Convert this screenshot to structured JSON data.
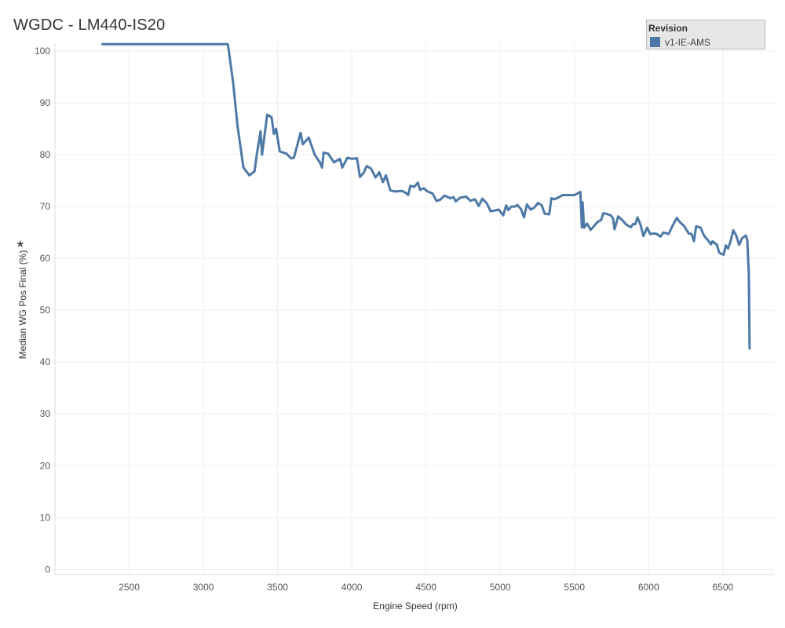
{
  "chart_data": {
    "type": "line",
    "title": "WGDC - LM440-IS20",
    "xlabel": "Engine Speed (rpm)",
    "ylabel": "Median WG Pos Final (%)",
    "xlim": [
      2000,
      6850
    ],
    "ylim": [
      -1,
      101.5
    ],
    "x_ticks": [
      2500,
      3000,
      3500,
      4000,
      4500,
      5000,
      5500,
      6000,
      6500
    ],
    "y_ticks": [
      0,
      10,
      20,
      30,
      40,
      50,
      60,
      70,
      80,
      90,
      100
    ],
    "grid": true,
    "legend": {
      "title": "Revision",
      "position": "top-right"
    },
    "series": [
      {
        "name": "v1-IE-AMS",
        "color": "#4e79a7",
        "points": [
          [
            2320,
            101.3
          ],
          [
            3165,
            101.3
          ],
          [
            3200,
            94.0
          ],
          [
            3230,
            85.5
          ],
          [
            3270,
            77.5
          ],
          [
            3310,
            76.0
          ],
          [
            3345,
            76.8
          ],
          [
            3360,
            80.0
          ],
          [
            3385,
            84.5
          ],
          [
            3395,
            80.0
          ],
          [
            3430,
            87.7
          ],
          [
            3460,
            87.2
          ],
          [
            3475,
            84.0
          ],
          [
            3490,
            85.0
          ],
          [
            3515,
            80.6
          ],
          [
            3560,
            80.2
          ],
          [
            3590,
            79.3
          ],
          [
            3610,
            79.4
          ],
          [
            3655,
            84.2
          ],
          [
            3670,
            82.0
          ],
          [
            3710,
            83.3
          ],
          [
            3750,
            80.0
          ],
          [
            3785,
            78.5
          ],
          [
            3800,
            77.5
          ],
          [
            3810,
            80.4
          ],
          [
            3840,
            80.2
          ],
          [
            3880,
            78.5
          ],
          [
            3920,
            79.2
          ],
          [
            3935,
            77.5
          ],
          [
            3970,
            79.4
          ],
          [
            4000,
            79.2
          ],
          [
            4035,
            79.3
          ],
          [
            4055,
            75.7
          ],
          [
            4080,
            76.5
          ],
          [
            4100,
            77.8
          ],
          [
            4130,
            77.3
          ],
          [
            4160,
            75.6
          ],
          [
            4185,
            76.6
          ],
          [
            4210,
            74.7
          ],
          [
            4230,
            76.0
          ],
          [
            4260,
            73.1
          ],
          [
            4290,
            72.9
          ],
          [
            4340,
            73.0
          ],
          [
            4370,
            72.5
          ],
          [
            4380,
            72.2
          ],
          [
            4395,
            74.0
          ],
          [
            4420,
            73.8
          ],
          [
            4445,
            74.6
          ],
          [
            4460,
            73.2
          ],
          [
            4485,
            73.5
          ],
          [
            4510,
            72.9
          ],
          [
            4545,
            72.5
          ],
          [
            4570,
            71.1
          ],
          [
            4595,
            71.3
          ],
          [
            4625,
            72.1
          ],
          [
            4665,
            71.6
          ],
          [
            4685,
            71.8
          ],
          [
            4700,
            71.0
          ],
          [
            4730,
            71.7
          ],
          [
            4770,
            71.9
          ],
          [
            4800,
            71.1
          ],
          [
            4830,
            71.4
          ],
          [
            4855,
            70.1
          ],
          [
            4880,
            71.5
          ],
          [
            4910,
            70.6
          ],
          [
            4935,
            69.1
          ],
          [
            4960,
            69.2
          ],
          [
            4990,
            69.4
          ],
          [
            5020,
            68.3
          ],
          [
            5040,
            70.2
          ],
          [
            5055,
            69.3
          ],
          [
            5075,
            70.0
          ],
          [
            5100,
            70.0
          ],
          [
            5115,
            70.3
          ],
          [
            5140,
            69.5
          ],
          [
            5160,
            67.9
          ],
          [
            5180,
            70.4
          ],
          [
            5205,
            69.4
          ],
          [
            5230,
            69.8
          ],
          [
            5255,
            70.7
          ],
          [
            5280,
            70.2
          ],
          [
            5300,
            68.6
          ],
          [
            5330,
            68.5
          ],
          [
            5345,
            71.6
          ],
          [
            5365,
            71.4
          ],
          [
            5390,
            71.7
          ],
          [
            5420,
            72.2
          ],
          [
            5500,
            72.2
          ],
          [
            5540,
            72.8
          ],
          [
            5550,
            66.0
          ],
          [
            5555,
            70.8
          ],
          [
            5565,
            65.9
          ],
          [
            5585,
            66.7
          ],
          [
            5610,
            65.5
          ],
          [
            5655,
            67.0
          ],
          [
            5680,
            67.4
          ],
          [
            5695,
            68.7
          ],
          [
            5715,
            68.6
          ],
          [
            5745,
            68.3
          ],
          [
            5760,
            67.7
          ],
          [
            5770,
            65.6
          ],
          [
            5795,
            68.1
          ],
          [
            5820,
            67.4
          ],
          [
            5850,
            66.5
          ],
          [
            5880,
            66.0
          ],
          [
            5895,
            66.6
          ],
          [
            5910,
            66.6
          ],
          [
            5925,
            67.9
          ],
          [
            5945,
            66.5
          ],
          [
            5965,
            64.3
          ],
          [
            5990,
            65.9
          ],
          [
            6010,
            64.7
          ],
          [
            6035,
            64.8
          ],
          [
            6055,
            64.7
          ],
          [
            6080,
            64.2
          ],
          [
            6100,
            65.0
          ],
          [
            6135,
            64.7
          ],
          [
            6165,
            66.5
          ],
          [
            6190,
            67.8
          ],
          [
            6210,
            67.0
          ],
          [
            6240,
            66.2
          ],
          [
            6270,
            64.8
          ],
          [
            6290,
            64.7
          ],
          [
            6305,
            63.3
          ],
          [
            6320,
            66.2
          ],
          [
            6350,
            65.9
          ],
          [
            6375,
            64.3
          ],
          [
            6400,
            63.5
          ],
          [
            6420,
            62.7
          ],
          [
            6430,
            63.3
          ],
          [
            6460,
            62.6
          ],
          [
            6475,
            61.1
          ],
          [
            6505,
            60.7
          ],
          [
            6520,
            62.5
          ],
          [
            6535,
            61.9
          ],
          [
            6550,
            63.1
          ],
          [
            6570,
            65.4
          ],
          [
            6590,
            64.4
          ],
          [
            6610,
            62.6
          ],
          [
            6630,
            63.9
          ],
          [
            6655,
            64.4
          ],
          [
            6665,
            63.5
          ],
          [
            6675,
            56.9
          ],
          [
            6680,
            42.6
          ]
        ]
      }
    ]
  }
}
